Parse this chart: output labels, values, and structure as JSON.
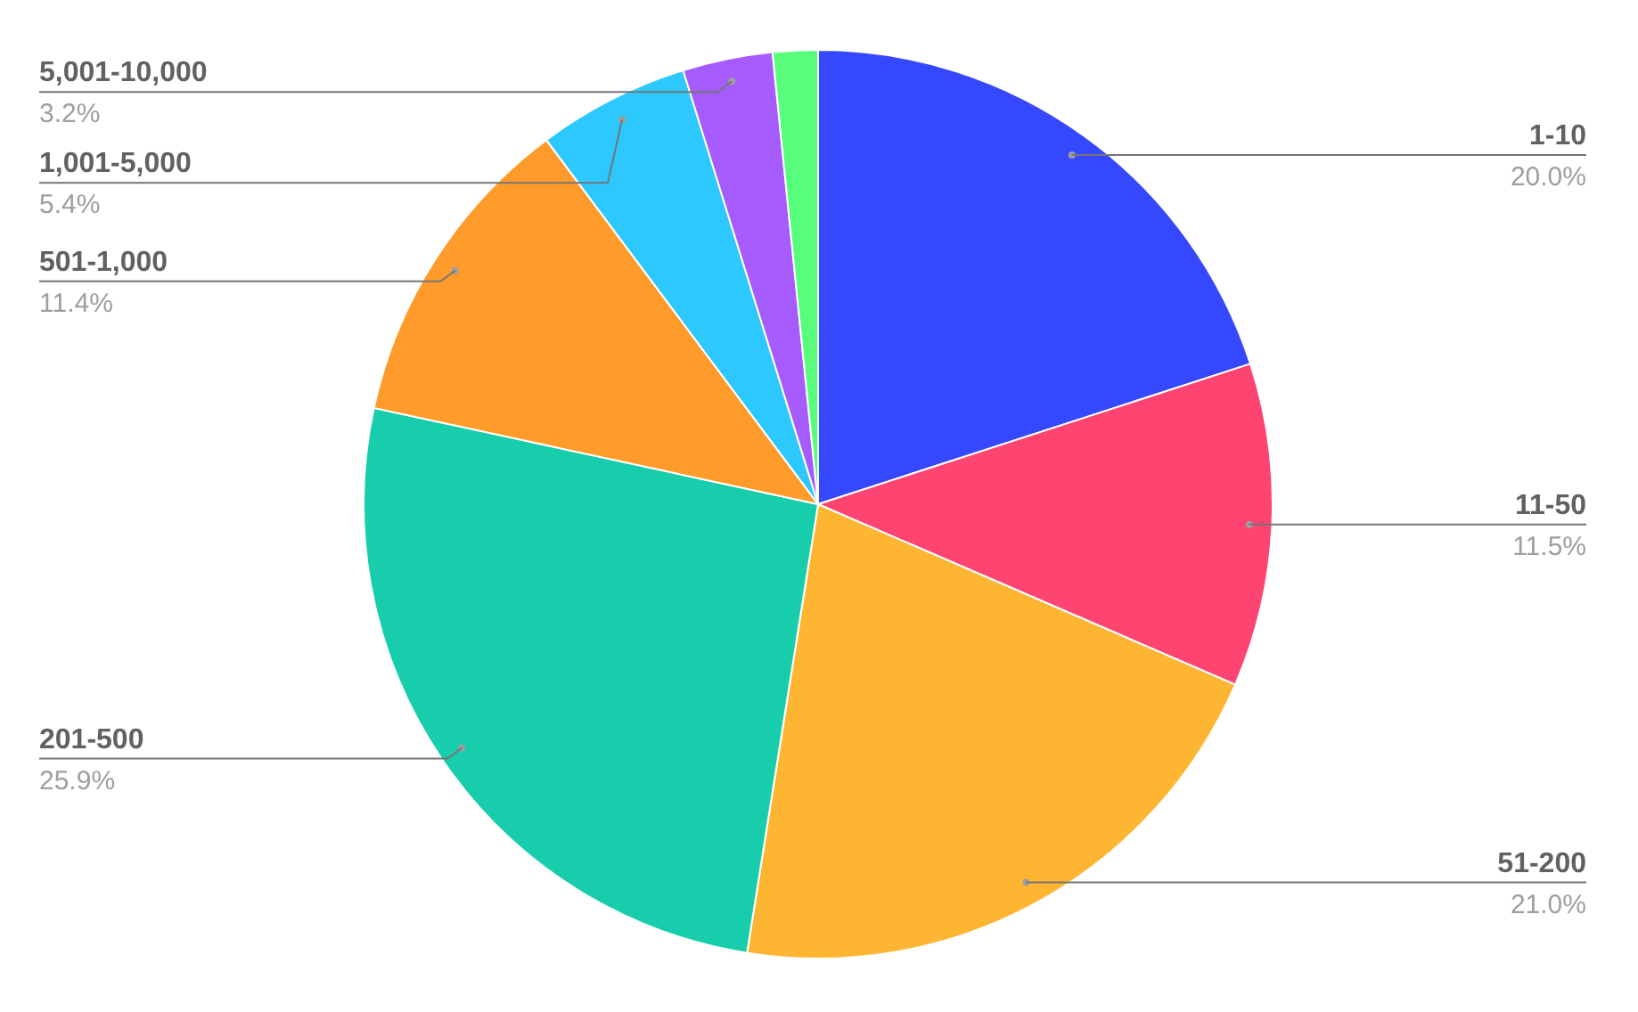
{
  "chart_data": {
    "type": "pie",
    "categories": [
      "1-10",
      "11-50",
      "51-200",
      "201-500",
      "501-1,000",
      "1,001-5,000",
      "5,001-10,000",
      null
    ],
    "values": [
      20.0,
      11.5,
      21.0,
      25.9,
      11.4,
      5.4,
      3.2,
      1.6
    ],
    "value_labels": [
      "20.0%",
      "11.5%",
      "21.0%",
      "25.9%",
      "11.4%",
      "5.4%",
      "3.2%",
      null
    ],
    "colors": [
      "#3548fd",
      "#fe4470",
      "#feb632",
      "#17cdac",
      "#fe9b2b",
      "#2cc8fe",
      "#a65bfd",
      "#57fd7b"
    ]
  }
}
